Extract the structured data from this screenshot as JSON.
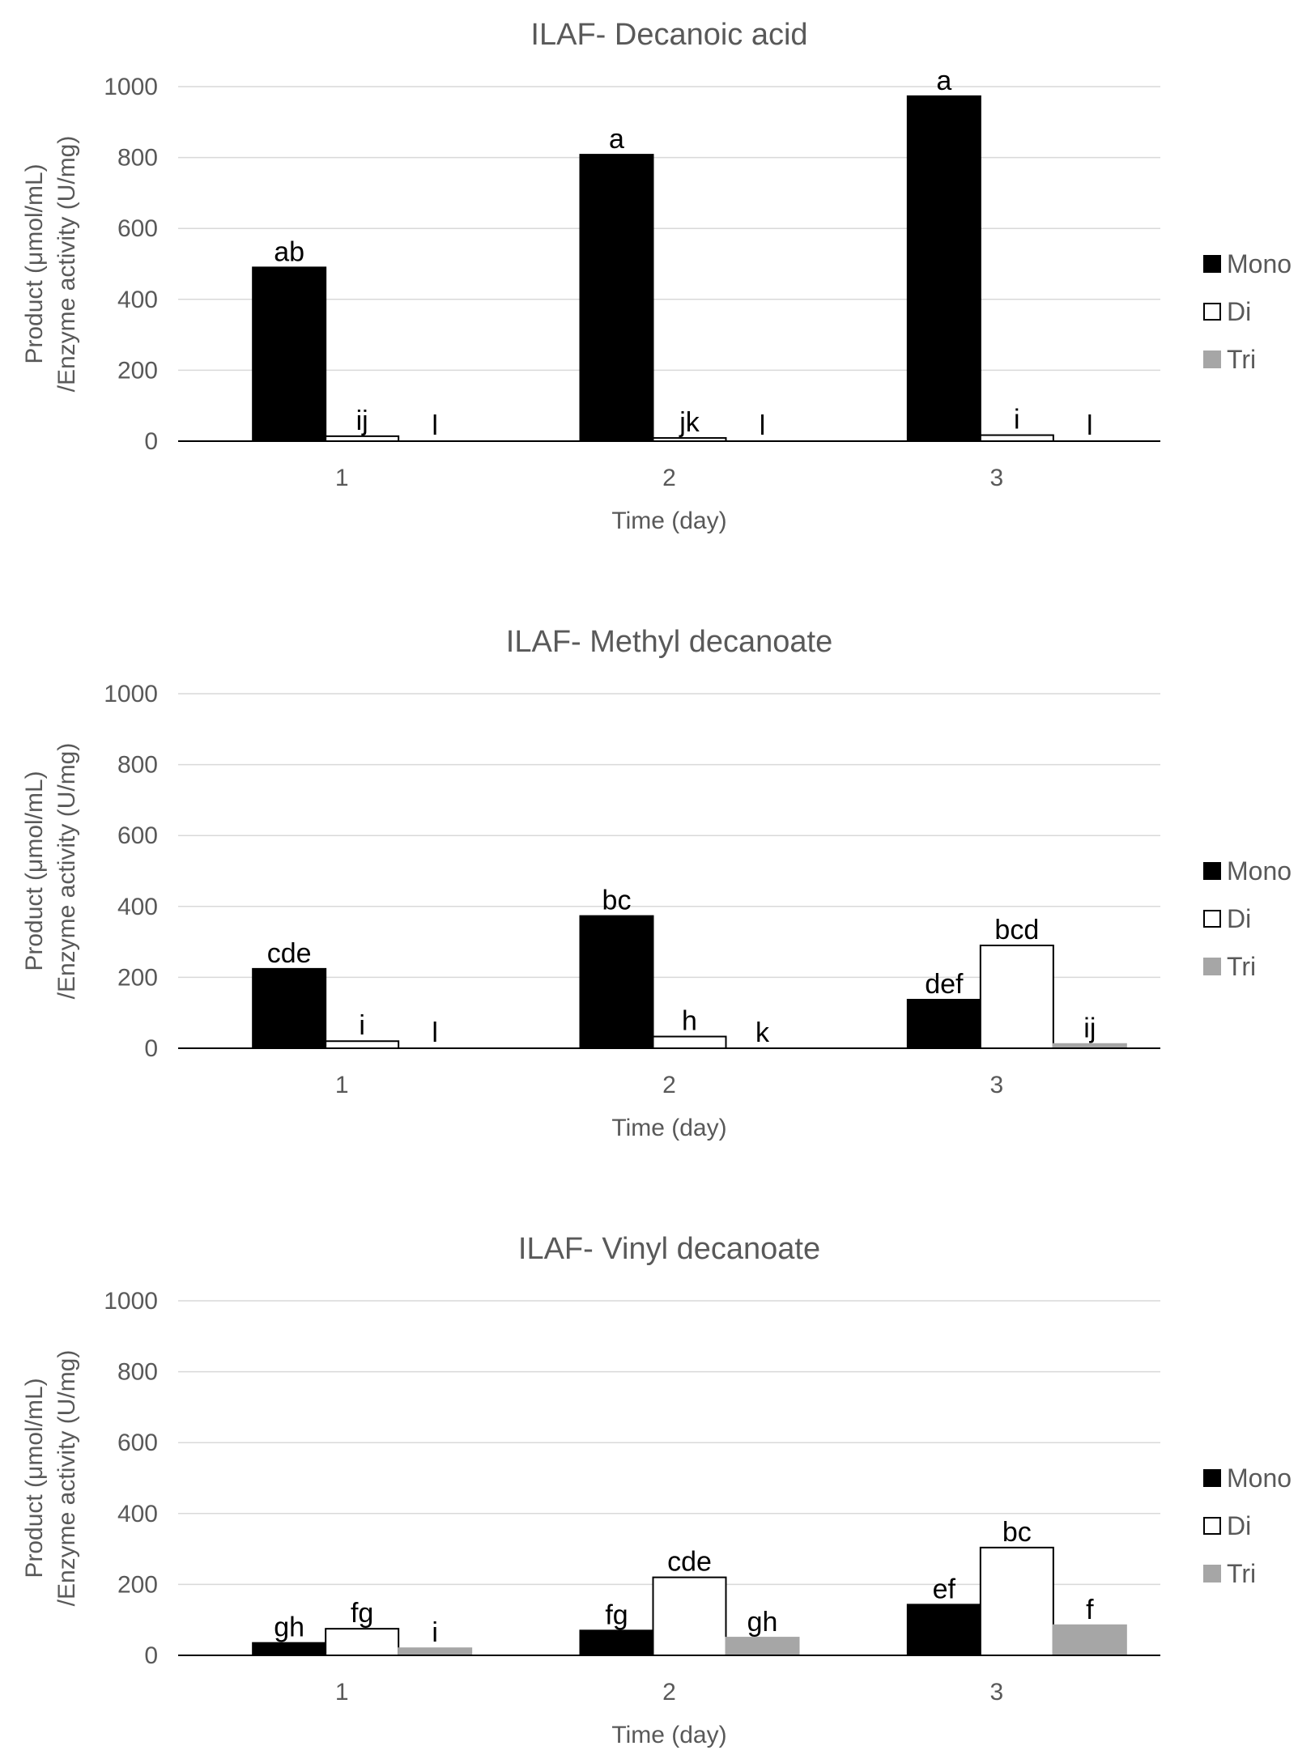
{
  "chart_data": [
    {
      "type": "bar",
      "title": "ILAF- Decanoic acid",
      "xlabel": "Time (day)",
      "ylabel_line1": "Product (μmol/mL)",
      "ylabel_line2": "/Enzyme activity (U/mg)",
      "ylim": [
        0,
        1000
      ],
      "yticks": [
        0,
        200,
        400,
        600,
        800,
        1000
      ],
      "categories": [
        "1",
        "2",
        "3"
      ],
      "series": [
        {
          "name": "Mono",
          "color": "#000000",
          "border": "#000000",
          "values": [
            490,
            808,
            973
          ],
          "labels": [
            "ab",
            "a",
            "a"
          ]
        },
        {
          "name": "Di",
          "color": "#ffffff",
          "border": "#000000",
          "values": [
            14,
            9,
            17
          ],
          "labels": [
            "ij",
            "jk",
            "i"
          ]
        },
        {
          "name": "Tri",
          "color": "#a6a6a6",
          "border": "#a6a6a6",
          "values": [
            0,
            0,
            0
          ],
          "labels": [
            "l",
            "l",
            "l"
          ]
        }
      ],
      "legend_position": "right"
    },
    {
      "type": "bar",
      "title": "ILAF- Methyl decanoate",
      "xlabel": "Time (day)",
      "ylabel_line1": "Product (μmol/mL)",
      "ylabel_line2": "/Enzyme activity (U/mg)",
      "ylim": [
        0,
        1000
      ],
      "yticks": [
        0,
        200,
        400,
        600,
        800,
        1000
      ],
      "categories": [
        "1",
        "2",
        "3"
      ],
      "series": [
        {
          "name": "Mono",
          "color": "#000000",
          "border": "#000000",
          "values": [
            224,
            373,
            137
          ],
          "labels": [
            "cde",
            "bc",
            "def"
          ]
        },
        {
          "name": "Di",
          "color": "#ffffff",
          "border": "#000000",
          "values": [
            20,
            33,
            290
          ],
          "labels": [
            "i",
            "h",
            "bcd"
          ]
        },
        {
          "name": "Tri",
          "color": "#a6a6a6",
          "border": "#a6a6a6",
          "values": [
            0,
            0,
            12
          ],
          "labels": [
            "l",
            "k",
            "ij"
          ]
        }
      ],
      "legend_position": "right"
    },
    {
      "type": "bar",
      "title": "ILAF- Vinyl decanoate",
      "xlabel": "Time (day)",
      "ylabel_line1": "Product (μmol/mL)",
      "ylabel_line2": "/Enzyme activity (U/mg)",
      "ylim": [
        0,
        1000
      ],
      "yticks": [
        0,
        200,
        400,
        600,
        800,
        1000
      ],
      "categories": [
        "1",
        "2",
        "3"
      ],
      "series": [
        {
          "name": "Mono",
          "color": "#000000",
          "border": "#000000",
          "values": [
            35,
            70,
            143
          ],
          "labels": [
            "gh",
            "fg",
            "ef"
          ]
        },
        {
          "name": "Di",
          "color": "#ffffff",
          "border": "#000000",
          "values": [
            75,
            220,
            304
          ],
          "labels": [
            "fg",
            "cde",
            "bc"
          ]
        },
        {
          "name": "Tri",
          "color": "#a6a6a6",
          "border": "#a6a6a6",
          "values": [
            20,
            50,
            85
          ],
          "labels": [
            "i",
            "gh",
            "f"
          ]
        }
      ],
      "legend_position": "right"
    }
  ]
}
